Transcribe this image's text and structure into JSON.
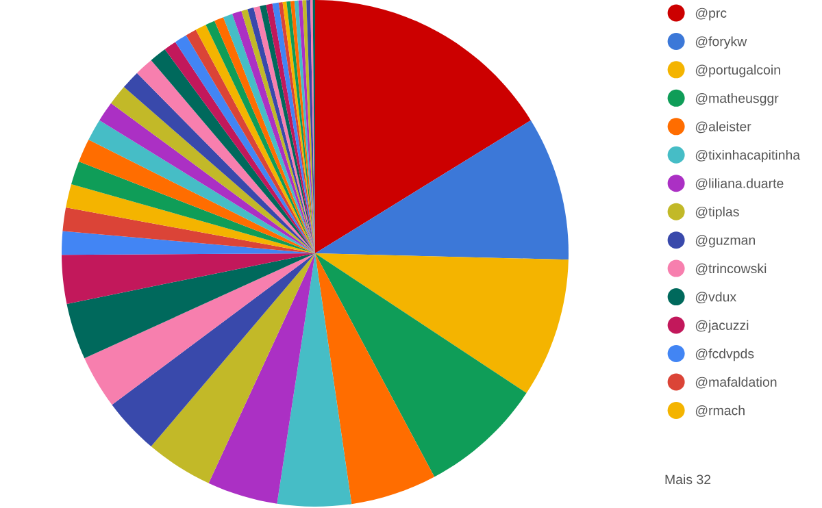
{
  "chart_data": {
    "type": "pie",
    "categories": [
      "@prc",
      "@forykw",
      "@portugalcoin",
      "@matheusggr",
      "@aleister",
      "@tixinhacapitinha",
      "@liliana.duarte",
      "@tiplas",
      "@guzman",
      "@trincowski",
      "@vdux",
      "@jacuzzi",
      "@fcdvpds",
      "@mafaldation",
      "@rmach",
      null,
      null,
      null,
      null,
      null,
      null,
      null,
      null,
      null,
      null,
      null,
      null,
      null,
      null,
      null,
      null,
      null,
      null,
      null,
      null,
      null,
      null,
      null,
      null,
      null,
      null,
      null,
      null,
      null,
      null,
      null,
      null
    ],
    "values": [
      16.2,
      9.2,
      8.9,
      7.9,
      5.5,
      4.7,
      4.5,
      4.3,
      3.6,
      3.4,
      3.6,
      3.1,
      1.5,
      1.5,
      1.5,
      1.5,
      1.5,
      1.4,
      1.3,
      1.3,
      1.2,
      1.2,
      1.1,
      0.8,
      0.8,
      0.7,
      0.7,
      0.6,
      0.6,
      0.6,
      0.6,
      0.4,
      0.4,
      0.4,
      0.4,
      0.4,
      0.4,
      0.25,
      0.25,
      0.25,
      0.25,
      0.25,
      0.25,
      0.25,
      0.25,
      0.15,
      0.15
    ],
    "colors": [
      "#cc0000",
      "#3c78d8",
      "#f4b400",
      "#0f9d58",
      "#ff6d00",
      "#46bdc6",
      "#ab30c4",
      "#c2b928",
      "#3949ab",
      "#f77fae",
      "#00695c",
      "#c2185b",
      "#4285f4",
      "#db4437",
      "#f4b400",
      "#0f9d58",
      "#ff6d00",
      "#46bdc6",
      "#ab30c4",
      "#c2b928",
      "#3949ab",
      "#f77fae",
      "#00695c",
      "#c2185b",
      "#4285f4",
      "#db4437",
      "#f4b400",
      "#0f9d58",
      "#ff6d00",
      "#46bdc6",
      "#ab30c4",
      "#c2b928",
      "#3949ab",
      "#f77fae",
      "#00695c",
      "#c2185b",
      "#4285f4",
      "#db4437",
      "#f4b400",
      "#0f9d58",
      "#ff6d00",
      "#46bdc6",
      "#ab30c4",
      "#c2b928",
      "#3949ab",
      "#f77fae",
      "#00695c"
    ],
    "legend": "right",
    "annotations": [
      "Mais 32"
    ]
  }
}
